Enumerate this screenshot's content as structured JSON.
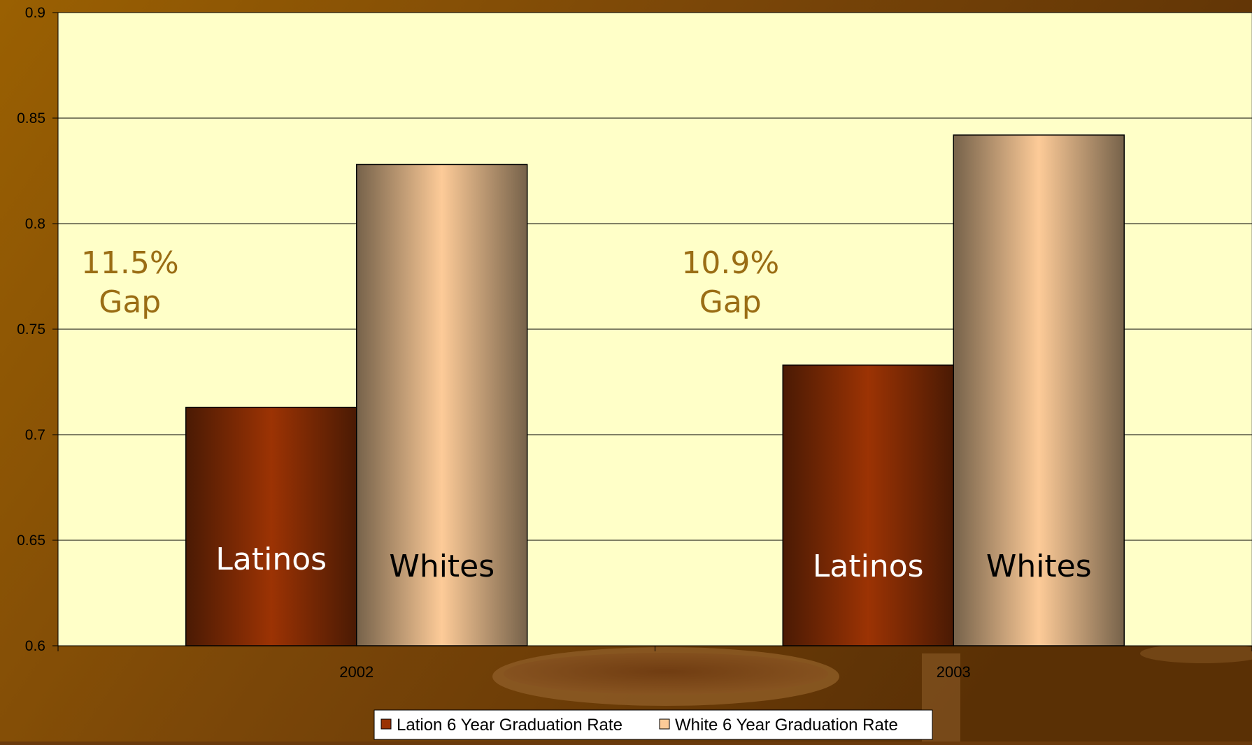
{
  "chart_data": {
    "type": "bar",
    "categories": [
      "2002",
      "2003"
    ],
    "series": [
      {
        "name": "Lation 6 Year Graduation Rate",
        "values": [
          0.713,
          0.733
        ],
        "color": "#9a3204"
      },
      {
        "name": "White 6 Year Graduation Rate",
        "values": [
          0.828,
          0.842
        ],
        "color": "#fccb98"
      }
    ],
    "ylim": [
      0.6,
      0.9
    ],
    "yticks": [
      "0.6",
      "0.65",
      "0.7",
      "0.75",
      "0.8",
      "0.85",
      "0.9"
    ],
    "grid": true,
    "legend_position": "bottom",
    "bar_labels": [
      [
        "Latinos",
        "Whites"
      ],
      [
        "Latinos",
        "Whites"
      ]
    ],
    "annotations": [
      {
        "category": "2002",
        "lines": [
          "11.5%",
          "Gap"
        ]
      },
      {
        "category": "2003",
        "lines": [
          "10.9%",
          "Gap"
        ]
      }
    ],
    "colors": {
      "plot_background": "#ffffc8",
      "slide_background": "#7a4a08",
      "annotation_text": "#9a6d14",
      "gridline": "#000000"
    }
  }
}
